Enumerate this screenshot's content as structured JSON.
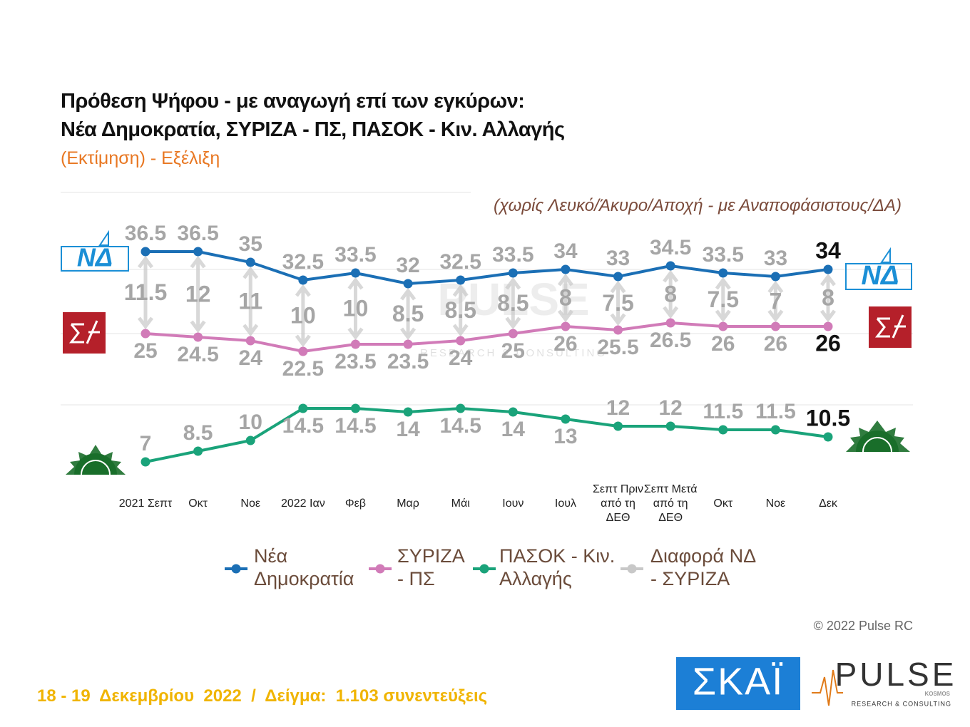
{
  "chart_data": {
    "type": "line",
    "title": [
      "Πρόθεση Ψήφου - με αναγωγή επί των εγκύρων:",
      "Νέα Δημοκρατία, ΣΥΡΙΖΑ - ΠΣ, ΠΑΣΟΚ - Κιν. Αλλαγής"
    ],
    "subtitle": "(Εκτίμηση) - Εξέλιξη",
    "note": "(χωρίς Λευκό/Άκυρο/Αποχή - με Αναποφάσιστους/ΔΑ)",
    "categories": [
      "2021 Σεπτ",
      "Οκτ",
      "Νοε",
      "2022 Ιαν",
      "Φεβ",
      "Μαρ",
      "Μάι",
      "Ιουν",
      "Ιουλ",
      "Σεπτ Πριν από τη ΔΕΘ",
      "Σεπτ Μετά από τη ΔΕΘ",
      "Οκτ",
      "Νοε",
      "Δεκ"
    ],
    "series": [
      {
        "name": "Νέα Δημοκρατία",
        "color": "#1b6fb5",
        "values": [
          36.5,
          36.5,
          35,
          32.5,
          33.5,
          32,
          32.5,
          33.5,
          34,
          33,
          34.5,
          33.5,
          33,
          34
        ]
      },
      {
        "name": "ΣΥΡΙΖΑ - ΠΣ",
        "color": "#d17bb8",
        "values": [
          25,
          24.5,
          24,
          22.5,
          23.5,
          23.5,
          24,
          25,
          26,
          25.5,
          26.5,
          26,
          26,
          26
        ]
      },
      {
        "name": "ΠΑΣΟΚ - Κιν. Αλλαγής",
        "color": "#1aa37a",
        "values": [
          7,
          8.5,
          10,
          14.5,
          14.5,
          14,
          14.5,
          14,
          13,
          12,
          12,
          11.5,
          11.5,
          10.5
        ]
      },
      {
        "name": "Διαφορά ΝΔ - ΣΥΡΙΖΑ",
        "color": "#c8c8c8",
        "values": [
          11.5,
          12,
          11,
          10,
          10,
          8.5,
          8.5,
          8.5,
          8,
          7.5,
          8,
          7.5,
          7,
          8
        ]
      }
    ]
  },
  "logos": {
    "nd": "ΝΔ",
    "skai": "ΣΚΑΪ",
    "pulse": "PULSE",
    "pulse_kosmos": "KOSMOS",
    "pulse_tagline": "RESEARCH & CONSULTING"
  },
  "watermark": {
    "name": "PULSE",
    "tagline": "RESEARCH & CONSULTING"
  },
  "copyright": "© 2022 Pulse RC",
  "footer": "18 - 19  Δεκεμβρίου  2022  /  Δείγμα:  1.103 συνεντεύξεις"
}
